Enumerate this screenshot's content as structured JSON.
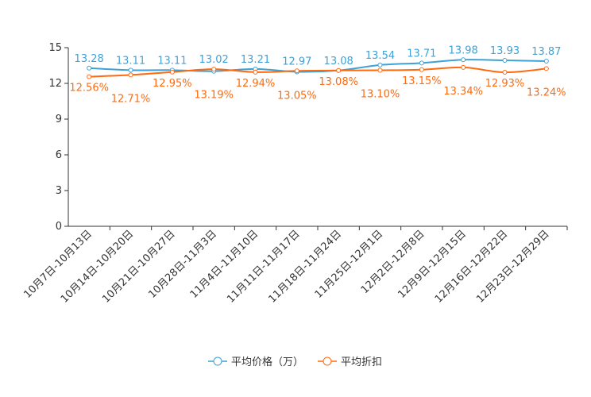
{
  "chart_data": {
    "type": "line",
    "categories": [
      "10月7日-10月13日",
      "10月14日-10月20日",
      "10月21日-10月27日",
      "10月28日-11月3日",
      "11月4日-11月10日",
      "11月11日-11月17日",
      "11月18日-11月24日",
      "11月25日-12月1日",
      "12月2日-12月8日",
      "12月9日-12月15日",
      "12月16日-12月22日",
      "12月23日-12月29日"
    ],
    "series": [
      {
        "name": "平均价格（万）",
        "color": "#3fa1d6",
        "values": [
          13.28,
          13.11,
          13.11,
          13.02,
          13.21,
          12.97,
          13.08,
          13.54,
          13.71,
          13.98,
          13.93,
          13.87
        ],
        "labels": [
          "13.28",
          "13.11",
          "13.11",
          "13.02",
          "13.21",
          "12.97",
          "13.08",
          "13.54",
          "13.71",
          "13.98",
          "13.93",
          "13.87"
        ]
      },
      {
        "name": "平均折扣",
        "color": "#ff6a0f",
        "values": [
          12.56,
          12.71,
          12.95,
          13.19,
          12.94,
          13.05,
          13.08,
          13.1,
          13.15,
          13.34,
          12.93,
          13.24
        ],
        "labels": [
          "12.56%",
          "12.71%",
          "12.95%",
          "13.19%",
          "12.94%",
          "13.05%",
          "13.08%",
          "13.10%",
          "13.15%",
          "13.34%",
          "12.93%",
          "13.24%"
        ]
      }
    ],
    "yticks": [
      "0",
      "3",
      "6",
      "9",
      "12",
      "15"
    ],
    "ylim": [
      0,
      15
    ],
    "legend": "bottom-center"
  }
}
